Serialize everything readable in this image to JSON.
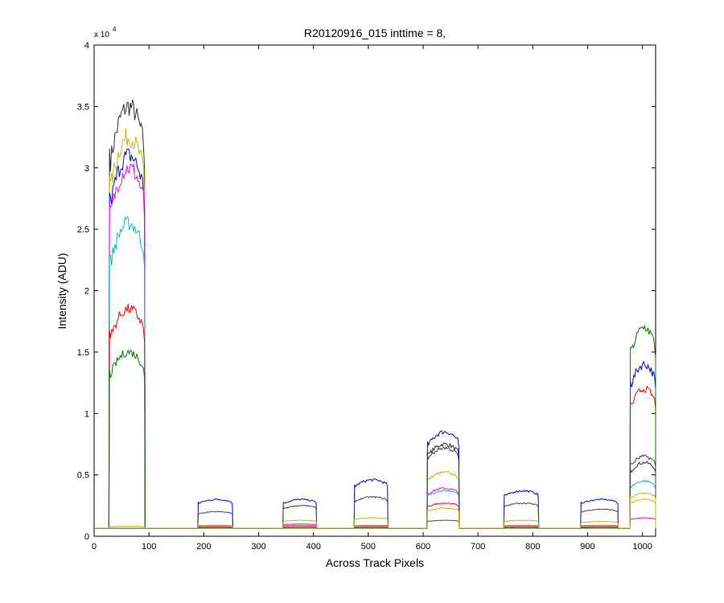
{
  "chart_data": {
    "type": "line",
    "title": "R20120916_015 inttime = 8,",
    "xlabel": "Across Track Pixels",
    "ylabel": "Intensity (ADU)",
    "y_multiplier_base": "x 10",
    "y_multiplier_exponent": "4",
    "xlim": [
      0,
      1024
    ],
    "ylim": [
      0,
      40000
    ],
    "xticks": [
      0,
      100,
      200,
      300,
      400,
      500,
      600,
      700,
      800,
      900,
      1000
    ],
    "yticks": [
      0,
      5000,
      10000,
      15000,
      20000,
      25000,
      30000,
      35000,
      40000
    ],
    "ytick_labels": [
      "0",
      "0.5",
      "1",
      "1.5",
      "2",
      "2.5",
      "3",
      "3.5",
      "4"
    ],
    "baseline": 650,
    "grid": false,
    "legend": "none",
    "segments": [
      {
        "start": 28,
        "end": 92
      },
      {
        "start": 190,
        "end": 252
      },
      {
        "start": 345,
        "end": 405
      },
      {
        "start": 475,
        "end": 535
      },
      {
        "start": 608,
        "end": 665
      },
      {
        "start": 748,
        "end": 810
      },
      {
        "start": 888,
        "end": 955
      },
      {
        "start": 978,
        "end": 1024
      }
    ],
    "series": [
      {
        "color": "#333333",
        "levels": [
          35000,
          650,
          650,
          650,
          7500,
          650,
          650,
          6000
        ]
      },
      {
        "color": "#bfbf00",
        "levels": [
          32500,
          650,
          650,
          650,
          5200,
          650,
          650,
          3000
        ]
      },
      {
        "color": "#0000ff",
        "levels": [
          31000,
          3000,
          3000,
          4600,
          8500,
          3700,
          3000,
          14000
        ]
      },
      {
        "color": "#ff00ff",
        "levels": [
          30000,
          700,
          1000,
          700,
          3900,
          700,
          700,
          1500
        ]
      },
      {
        "color": "#00bfbf",
        "levels": [
          25500,
          900,
          900,
          900,
          3700,
          900,
          900,
          4500
        ]
      },
      {
        "color": "#ff0000",
        "levels": [
          18500,
          800,
          800,
          800,
          2700,
          800,
          800,
          12000
        ]
      },
      {
        "color": "#008000",
        "levels": [
          15000,
          700,
          700,
          700,
          1300,
          700,
          700,
          17000
        ]
      },
      {
        "color": "#444444",
        "levels": [
          650,
          2000,
          2500,
          3200,
          7200,
          2700,
          2200,
          6500
        ]
      },
      {
        "color": "#c8b400",
        "levels": [
          800,
          900,
          1300,
          1500,
          2300,
          1300,
          1200,
          3500
        ]
      }
    ]
  }
}
